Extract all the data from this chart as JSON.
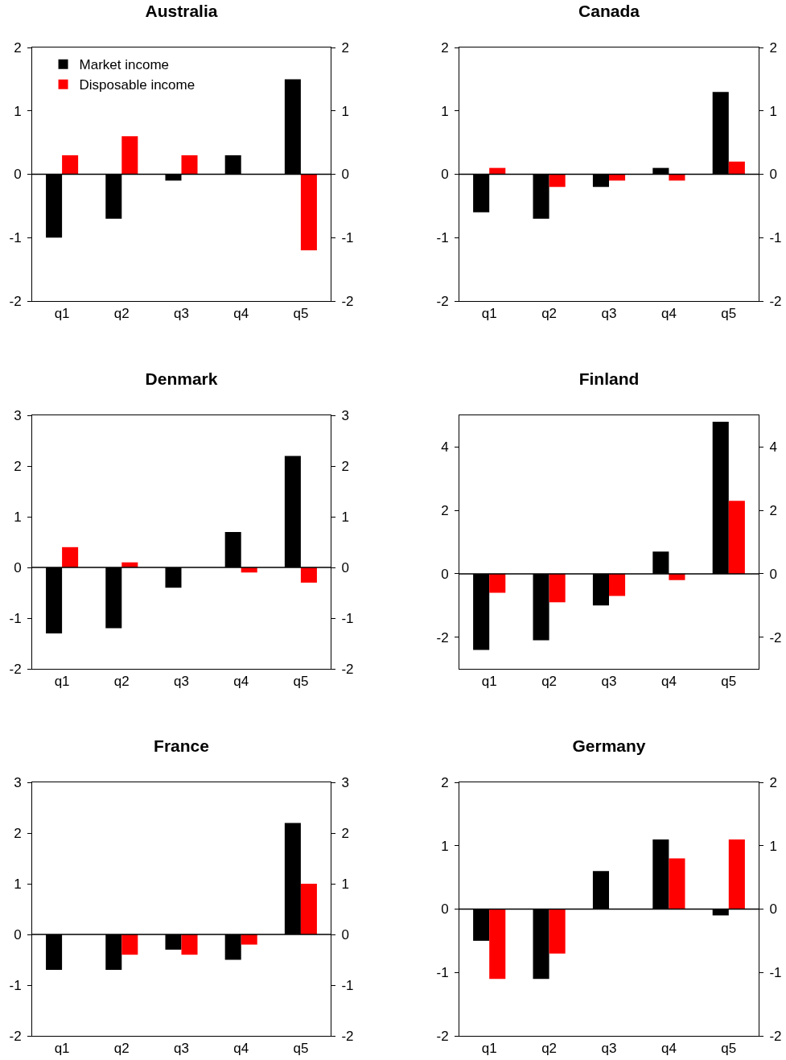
{
  "chart_data": [
    {
      "type": "bar",
      "title": "Australia",
      "categories": [
        "q1",
        "q2",
        "q3",
        "q4",
        "q5"
      ],
      "legend": "top left",
      "grid": false,
      "series": [
        {
          "name": "Market income",
          "color": "#000000",
          "values": [
            -1.0,
            -0.7,
            -0.1,
            0.3,
            1.5
          ]
        },
        {
          "name": "Disposable income",
          "color": "#ff0000",
          "values": [
            0.3,
            0.6,
            0.3,
            0,
            -1.2
          ]
        }
      ],
      "ylim": [
        -2,
        2
      ],
      "yticks": [
        -2,
        -1,
        0,
        1,
        2
      ],
      "y2lim": [
        -2,
        2
      ],
      "y2ticks": [
        -2,
        -1,
        0,
        1,
        2
      ],
      "ref_lines": [
        {
          "axis": "y",
          "value": 0
        }
      ]
    },
    {
      "type": "bar",
      "title": "Canada",
      "categories": [
        "q1",
        "q2",
        "q3",
        "q4",
        "q5"
      ],
      "legend": false,
      "grid": false,
      "series": [
        {
          "color": "#000000",
          "values": [
            -0.6,
            -0.7,
            -0.2,
            0.1,
            1.3
          ]
        },
        {
          "color": "#ff0000",
          "values": [
            0.1,
            -0.2,
            -0.1,
            -0.1,
            0.2
          ]
        }
      ],
      "ylim": [
        -2,
        2
      ],
      "yticks": [
        -2,
        -1,
        0,
        1,
        2
      ],
      "y2lim": [
        -2,
        2
      ],
      "y2ticks": [
        -2,
        -1,
        0,
        1,
        2
      ],
      "ref_lines": [
        {
          "axis": "y",
          "value": 0
        }
      ]
    },
    {
      "type": "bar",
      "title": "Denmark",
      "categories": [
        "q1",
        "q2",
        "q3",
        "q4",
        "q5"
      ],
      "legend": false,
      "grid": false,
      "series": [
        {
          "color": "#000000",
          "values": [
            -1.3,
            -1.2,
            -0.4,
            0.7,
            2.2
          ]
        },
        {
          "color": "#ff0000",
          "values": [
            0.4,
            0.1,
            0,
            -0.1,
            -0.3
          ]
        }
      ],
      "ylim": [
        -2,
        3
      ],
      "yticks": [
        -2,
        -1,
        0,
        1,
        2,
        3
      ],
      "y2lim": [
        -2,
        3
      ],
      "y2ticks": [
        -2,
        -1,
        0,
        1,
        2,
        3
      ],
      "ref_lines": [
        {
          "axis": "y",
          "value": 0
        }
      ]
    },
    {
      "type": "bar",
      "title": "Finland",
      "categories": [
        "q1",
        "q2",
        "q3",
        "q4",
        "q5"
      ],
      "legend": false,
      "grid": false,
      "series": [
        {
          "color": "#000000",
          "values": [
            -2.4,
            -2.1,
            -1.0,
            0.7,
            4.8
          ]
        },
        {
          "color": "#ff0000",
          "values": [
            -0.6,
            -0.9,
            -0.7,
            -0.2,
            2.3
          ]
        }
      ],
      "ylim": [
        -3,
        5
      ],
      "yticks": [
        -2,
        0,
        2,
        4
      ],
      "y2lim": [
        -3,
        5
      ],
      "y2ticks": [
        -2,
        0,
        2,
        4
      ],
      "ref_lines": [
        {
          "axis": "y",
          "value": 0
        }
      ]
    },
    {
      "type": "bar",
      "title": "France",
      "categories": [
        "q1",
        "q2",
        "q3",
        "q4",
        "q5"
      ],
      "legend": false,
      "grid": false,
      "series": [
        {
          "color": "#000000",
          "values": [
            -0.7,
            -0.7,
            -0.3,
            -0.5,
            2.2
          ]
        },
        {
          "color": "#ff0000",
          "values": [
            0,
            -0.4,
            -0.4,
            -0.2,
            1.0
          ]
        }
      ],
      "ylim": [
        -2,
        3
      ],
      "yticks": [
        -2,
        -1,
        0,
        1,
        2,
        3
      ],
      "y2lim": [
        -2,
        3
      ],
      "y2ticks": [
        -2,
        -1,
        0,
        1,
        2,
        3
      ],
      "ref_lines": [
        {
          "axis": "y",
          "value": 0
        }
      ]
    },
    {
      "type": "bar",
      "title": "Germany",
      "categories": [
        "q1",
        "q2",
        "q3",
        "q4",
        "q5"
      ],
      "legend": false,
      "grid": false,
      "series": [
        {
          "color": "#000000",
          "values": [
            -0.5,
            -1.1,
            0.6,
            1.1,
            -0.1
          ]
        },
        {
          "color": "#ff0000",
          "values": [
            -1.1,
            -0.7,
            0,
            0.8,
            1.1
          ]
        }
      ],
      "ylim": [
        -2,
        2
      ],
      "yticks": [
        -2,
        -1,
        0,
        1,
        2
      ],
      "y2lim": [
        -2,
        2
      ],
      "y2ticks": [
        -2,
        -1,
        0,
        1,
        2
      ],
      "ref_lines": [
        {
          "axis": "y",
          "value": 0
        }
      ]
    }
  ]
}
